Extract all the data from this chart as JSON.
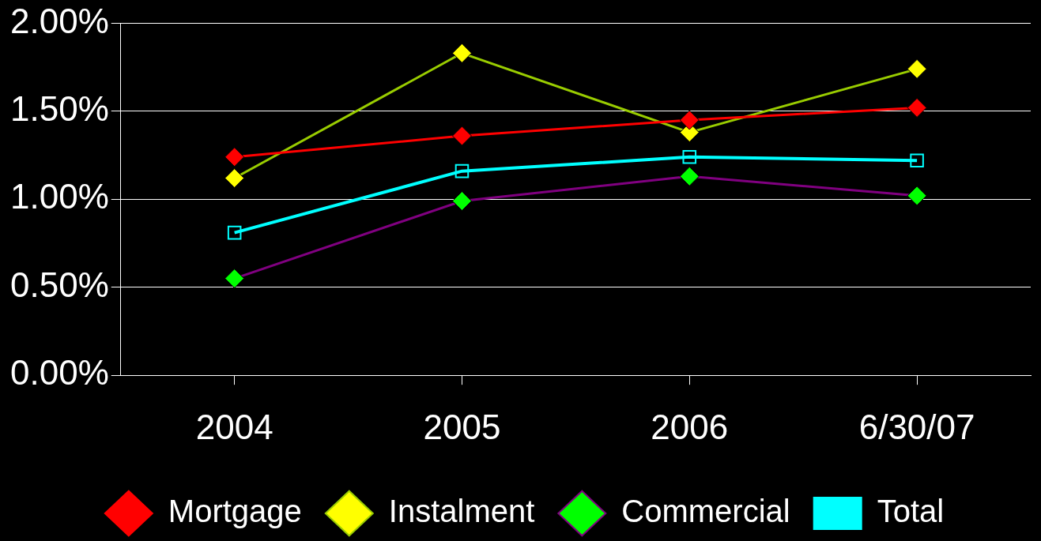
{
  "chart_data": {
    "type": "line",
    "categories": [
      "2004",
      "2005",
      "2006",
      "6/30/07"
    ],
    "series": [
      {
        "name": "Mortgage",
        "color": "#ff0000",
        "marker": "diamond",
        "values": [
          1.24,
          1.36,
          1.45,
          1.52
        ]
      },
      {
        "name": "Instalment",
        "color": "#99cc00",
        "colors": [
          "#ffff00",
          "#ffff00",
          "#ffff00",
          "#ffff00"
        ],
        "marker": "diamond",
        "values": [
          1.12,
          1.83,
          1.38,
          1.74
        ]
      },
      {
        "name": "Commercial",
        "color": "#800080",
        "colors": [
          "#00ff00",
          "#00ff00",
          "#00ff00",
          "#00ff00"
        ],
        "marker": "diamond",
        "values": [
          0.55,
          0.99,
          1.13,
          1.02
        ]
      },
      {
        "name": "Total",
        "color": "#00ffff",
        "marker": "square",
        "values": [
          0.81,
          1.16,
          1.24,
          1.22
        ]
      }
    ],
    "ylim": [
      0,
      2
    ],
    "yticks": [
      {
        "value": 0,
        "label": "0.00%"
      },
      {
        "value": 0.5,
        "label": "0.50%"
      },
      {
        "value": 1,
        "label": "1.00%"
      },
      {
        "value": 1.5,
        "label": "1.50%"
      },
      {
        "value": 2,
        "label": "2.00%"
      }
    ],
    "grid": "y",
    "legend": "bottom"
  }
}
